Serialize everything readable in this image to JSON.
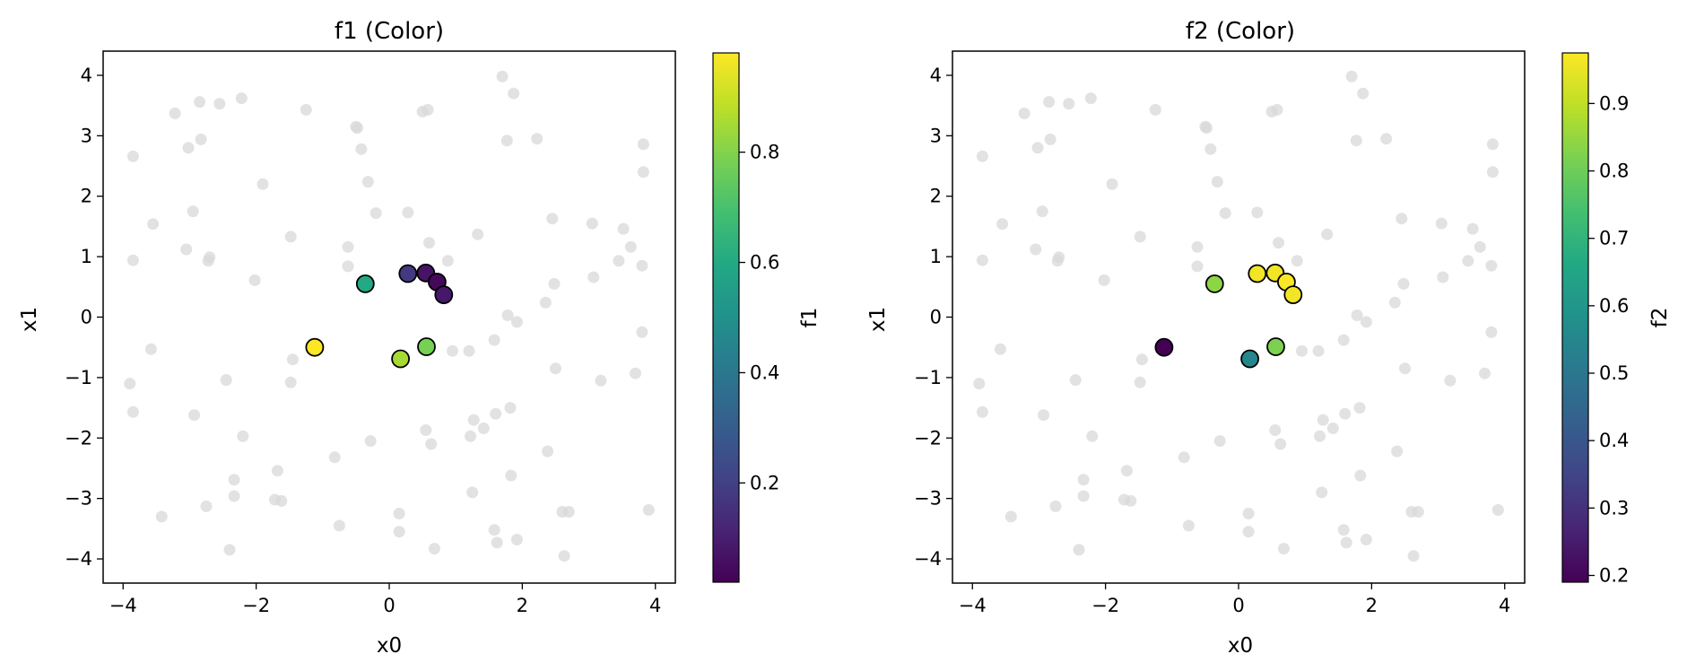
{
  "chart_data": [
    {
      "type": "scatter",
      "title": "f1 (Color)",
      "xlabel": "x0",
      "ylabel": "x1",
      "xlim": [
        -4.3,
        4.3
      ],
      "ylim": [
        -4.4,
        4.4
      ],
      "xticks": [
        -4,
        -2,
        0,
        2,
        4
      ],
      "yticks": [
        -4,
        -3,
        -2,
        -1,
        0,
        1,
        2,
        3,
        4
      ],
      "colorbar": {
        "label": "f1",
        "range": [
          0.02,
          0.98
        ],
        "ticks": [
          0.2,
          0.4,
          0.6,
          0.8
        ]
      },
      "grid": false,
      "background_points_color": "#d8d8d8",
      "highlighted_points": [
        {
          "x": -0.36,
          "y": 0.55,
          "value": 0.6
        },
        {
          "x": 0.28,
          "y": 0.72,
          "value": 0.18
        },
        {
          "x": 0.55,
          "y": 0.73,
          "value": 0.07
        },
        {
          "x": 0.72,
          "y": 0.58,
          "value": 0.04
        },
        {
          "x": 0.82,
          "y": 0.37,
          "value": 0.08
        },
        {
          "x": -1.12,
          "y": -0.5,
          "value": 0.98
        },
        {
          "x": 0.17,
          "y": -0.69,
          "value": 0.85
        },
        {
          "x": 0.56,
          "y": -0.49,
          "value": 0.78
        }
      ]
    },
    {
      "type": "scatter",
      "title": "f2 (Color)",
      "xlabel": "x0",
      "ylabel": "x1",
      "xlim": [
        -4.3,
        4.3
      ],
      "ylim": [
        -4.4,
        4.4
      ],
      "xticks": [
        -4,
        -2,
        0,
        2,
        4
      ],
      "yticks": [
        -4,
        -3,
        -2,
        -1,
        0,
        1,
        2,
        3,
        4
      ],
      "colorbar": {
        "label": "f2",
        "range": [
          0.19,
          0.975
        ],
        "ticks": [
          0.2,
          0.3,
          0.4,
          0.5,
          0.6,
          0.7,
          0.8,
          0.9
        ]
      },
      "grid": false,
      "background_points_color": "#d8d8d8",
      "highlighted_points": [
        {
          "x": -0.36,
          "y": 0.55,
          "value": 0.84
        },
        {
          "x": 0.28,
          "y": 0.72,
          "value": 0.96
        },
        {
          "x": 0.55,
          "y": 0.73,
          "value": 0.96
        },
        {
          "x": 0.72,
          "y": 0.58,
          "value": 0.97
        },
        {
          "x": 0.82,
          "y": 0.37,
          "value": 0.96
        },
        {
          "x": -1.12,
          "y": -0.5,
          "value": 0.19
        },
        {
          "x": 0.17,
          "y": -0.69,
          "value": 0.55
        },
        {
          "x": 0.56,
          "y": -0.49,
          "value": 0.82
        }
      ]
    }
  ],
  "background_points": [
    [
      -3.9,
      -1.1
    ],
    [
      -3.85,
      -1.57
    ],
    [
      -3.85,
      0.94
    ],
    [
      -3.85,
      2.66
    ],
    [
      -3.55,
      1.54
    ],
    [
      -3.58,
      -0.53
    ],
    [
      -3.42,
      -3.3
    ],
    [
      -3.22,
      3.37
    ],
    [
      -3.05,
      1.12
    ],
    [
      -3.02,
      2.8
    ],
    [
      -2.95,
      1.75
    ],
    [
      -2.93,
      -1.62
    ],
    [
      -2.85,
      3.56
    ],
    [
      -2.83,
      2.94
    ],
    [
      -2.75,
      -3.13
    ],
    [
      -2.7,
      0.99
    ],
    [
      -2.72,
      0.93
    ],
    [
      -2.55,
      3.53
    ],
    [
      -2.45,
      -1.04
    ],
    [
      -2.4,
      -3.85
    ],
    [
      -2.33,
      -2.69
    ],
    [
      -2.33,
      -2.96
    ],
    [
      -2.22,
      3.62
    ],
    [
      -2.2,
      -1.97
    ],
    [
      -2.02,
      0.61
    ],
    [
      -1.9,
      2.2
    ],
    [
      -1.72,
      -3.02
    ],
    [
      -1.68,
      -2.54
    ],
    [
      -1.62,
      -3.04
    ],
    [
      -1.48,
      1.33
    ],
    [
      -1.45,
      -0.7
    ],
    [
      -1.48,
      -1.08
    ],
    [
      -1.25,
      3.43
    ],
    [
      -0.82,
      -2.32
    ],
    [
      -0.75,
      -3.45
    ],
    [
      -0.62,
      1.16
    ],
    [
      -0.62,
      0.84
    ],
    [
      -0.5,
      3.15
    ],
    [
      -0.48,
      3.13
    ],
    [
      -0.42,
      2.78
    ],
    [
      -0.32,
      2.24
    ],
    [
      -0.28,
      -2.05
    ],
    [
      -0.2,
      1.72
    ],
    [
      0.15,
      -3.25
    ],
    [
      0.15,
      -3.55
    ],
    [
      0.28,
      1.73
    ],
    [
      0.5,
      3.4
    ],
    [
      0.55,
      -1.87
    ],
    [
      0.58,
      3.43
    ],
    [
      0.6,
      1.23
    ],
    [
      0.63,
      -2.1
    ],
    [
      0.68,
      -3.83
    ],
    [
      0.88,
      0.93
    ],
    [
      0.95,
      -0.56
    ],
    [
      1.2,
      -0.56
    ],
    [
      1.22,
      -1.97
    ],
    [
      1.25,
      -2.9
    ],
    [
      1.27,
      -1.7
    ],
    [
      1.33,
      1.37
    ],
    [
      1.42,
      -1.84
    ],
    [
      1.58,
      -0.38
    ],
    [
      1.58,
      -3.52
    ],
    [
      1.62,
      -3.73
    ],
    [
      1.6,
      -1.6
    ],
    [
      1.7,
      3.98
    ],
    [
      1.77,
      2.92
    ],
    [
      1.78,
      0.03
    ],
    [
      1.82,
      -1.5
    ],
    [
      1.83,
      -2.62
    ],
    [
      1.87,
      3.7
    ],
    [
      1.92,
      -0.08
    ],
    [
      1.92,
      -3.68
    ],
    [
      2.22,
      2.95
    ],
    [
      2.35,
      0.24
    ],
    [
      2.38,
      -2.22
    ],
    [
      2.45,
      1.63
    ],
    [
      2.48,
      0.55
    ],
    [
      2.5,
      -0.85
    ],
    [
      2.6,
      -3.22
    ],
    [
      2.63,
      -3.95
    ],
    [
      2.7,
      -3.22
    ],
    [
      3.05,
      1.55
    ],
    [
      3.07,
      0.66
    ],
    [
      3.18,
      -1.05
    ],
    [
      3.45,
      0.93
    ],
    [
      3.52,
      1.46
    ],
    [
      3.63,
      1.16
    ],
    [
      3.7,
      -0.93
    ],
    [
      3.8,
      -0.25
    ],
    [
      3.8,
      0.85
    ],
    [
      3.82,
      2.86
    ],
    [
      3.82,
      2.4
    ],
    [
      3.9,
      -3.19
    ]
  ]
}
